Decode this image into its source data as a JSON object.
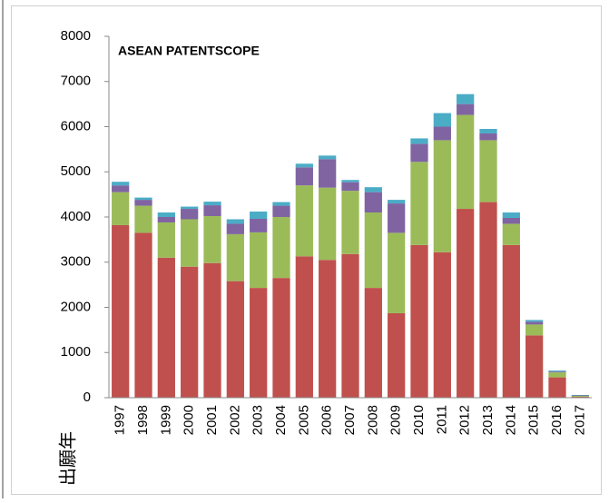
{
  "chart_data": {
    "type": "stacked_bar",
    "title": "ASEAN PATENTSCOPE",
    "x_label": "出願年",
    "categories": [
      "1997",
      "1998",
      "1999",
      "2000",
      "2001",
      "2002",
      "2003",
      "2004",
      "2005",
      "2006",
      "2007",
      "2008",
      "2009",
      "2010",
      "2011",
      "2012",
      "2013",
      "2014",
      "2015",
      "2016",
      "2017"
    ],
    "series": [
      {
        "color": "#c0504d",
        "values": [
          3820,
          3650,
          3100,
          2900,
          2980,
          2580,
          2430,
          2650,
          3130,
          3050,
          3180,
          2430,
          1870,
          3380,
          3220,
          4180,
          4330,
          3380,
          1380,
          450,
          20
        ]
      },
      {
        "color": "#9bbb59",
        "values": [
          730,
          600,
          780,
          1050,
          1040,
          1040,
          1230,
          1350,
          1570,
          1600,
          1400,
          1670,
          1780,
          1840,
          2480,
          2080,
          1370,
          470,
          240,
          110,
          20
        ]
      },
      {
        "color": "#8064a2",
        "values": [
          150,
          130,
          120,
          230,
          240,
          230,
          300,
          250,
          400,
          630,
          190,
          450,
          650,
          400,
          300,
          240,
          150,
          130,
          60,
          20,
          10
        ]
      },
      {
        "color": "#4bacc6",
        "values": [
          80,
          50,
          100,
          50,
          80,
          100,
          160,
          80,
          80,
          80,
          50,
          110,
          80,
          120,
          300,
          220,
          100,
          120,
          40,
          20,
          10
        ]
      }
    ],
    "ylim": [
      0,
      8000
    ],
    "yticks": [
      0,
      1000,
      2000,
      3000,
      4000,
      5000,
      6000,
      7000,
      8000
    ],
    "grid": false
  }
}
